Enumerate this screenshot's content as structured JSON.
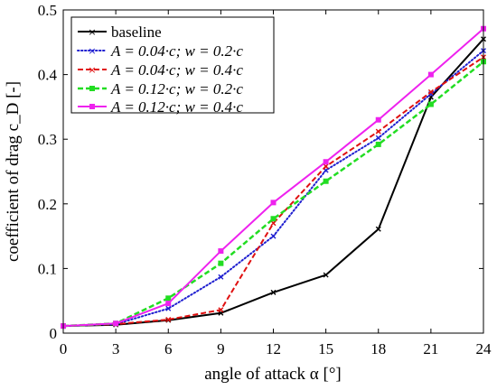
{
  "chart_data": {
    "type": "line",
    "x": [
      0,
      3,
      6,
      9,
      12,
      15,
      18,
      21,
      24
    ],
    "xlim": [
      0,
      24
    ],
    "ylim": [
      0,
      0.5
    ],
    "xticks": [
      "0",
      "3",
      "6",
      "9",
      "12",
      "15",
      "18",
      "21",
      "24"
    ],
    "yticks": [
      "0",
      "0.1",
      "0.2",
      "0.3",
      "0.4",
      "0.5"
    ],
    "xlabel": "angle of attack α [°]",
    "ylabel": "coefficient of drag c_D [-]",
    "grid": false,
    "legend_position": "top-left",
    "series": [
      {
        "name": "baseline",
        "color": "#000000",
        "line_style": "solid",
        "marker": "x",
        "values": [
          0.011,
          0.013,
          0.02,
          0.031,
          0.063,
          0.09,
          0.161,
          0.365,
          0.455
        ]
      },
      {
        "name": "A = 0.04·c; w = 0.2·c",
        "color": "#1f1fd0",
        "line_style": "dotted",
        "marker": "x",
        "values": [
          0.011,
          0.014,
          0.038,
          0.087,
          0.15,
          0.252,
          0.302,
          0.37,
          0.437
        ]
      },
      {
        "name": "A = 0.04·c; w = 0.4·c",
        "color": "#e01010",
        "line_style": "dashed",
        "marker": "x",
        "values": [
          0.011,
          0.014,
          0.021,
          0.036,
          0.17,
          0.258,
          0.312,
          0.373,
          0.427
        ]
      },
      {
        "name": "A = 0.12·c; w = 0.2·c",
        "color": "#22dd22",
        "line_style": "dashed",
        "marker": "square",
        "values": [
          0.011,
          0.015,
          0.054,
          0.108,
          0.177,
          0.235,
          0.292,
          0.354,
          0.42
        ]
      },
      {
        "name": "A = 0.12·c; w = 0.4·c",
        "color": "#ee22ee",
        "line_style": "solid",
        "marker": "square",
        "values": [
          0.011,
          0.015,
          0.046,
          0.127,
          0.202,
          0.265,
          0.33,
          0.4,
          0.471
        ]
      }
    ]
  }
}
